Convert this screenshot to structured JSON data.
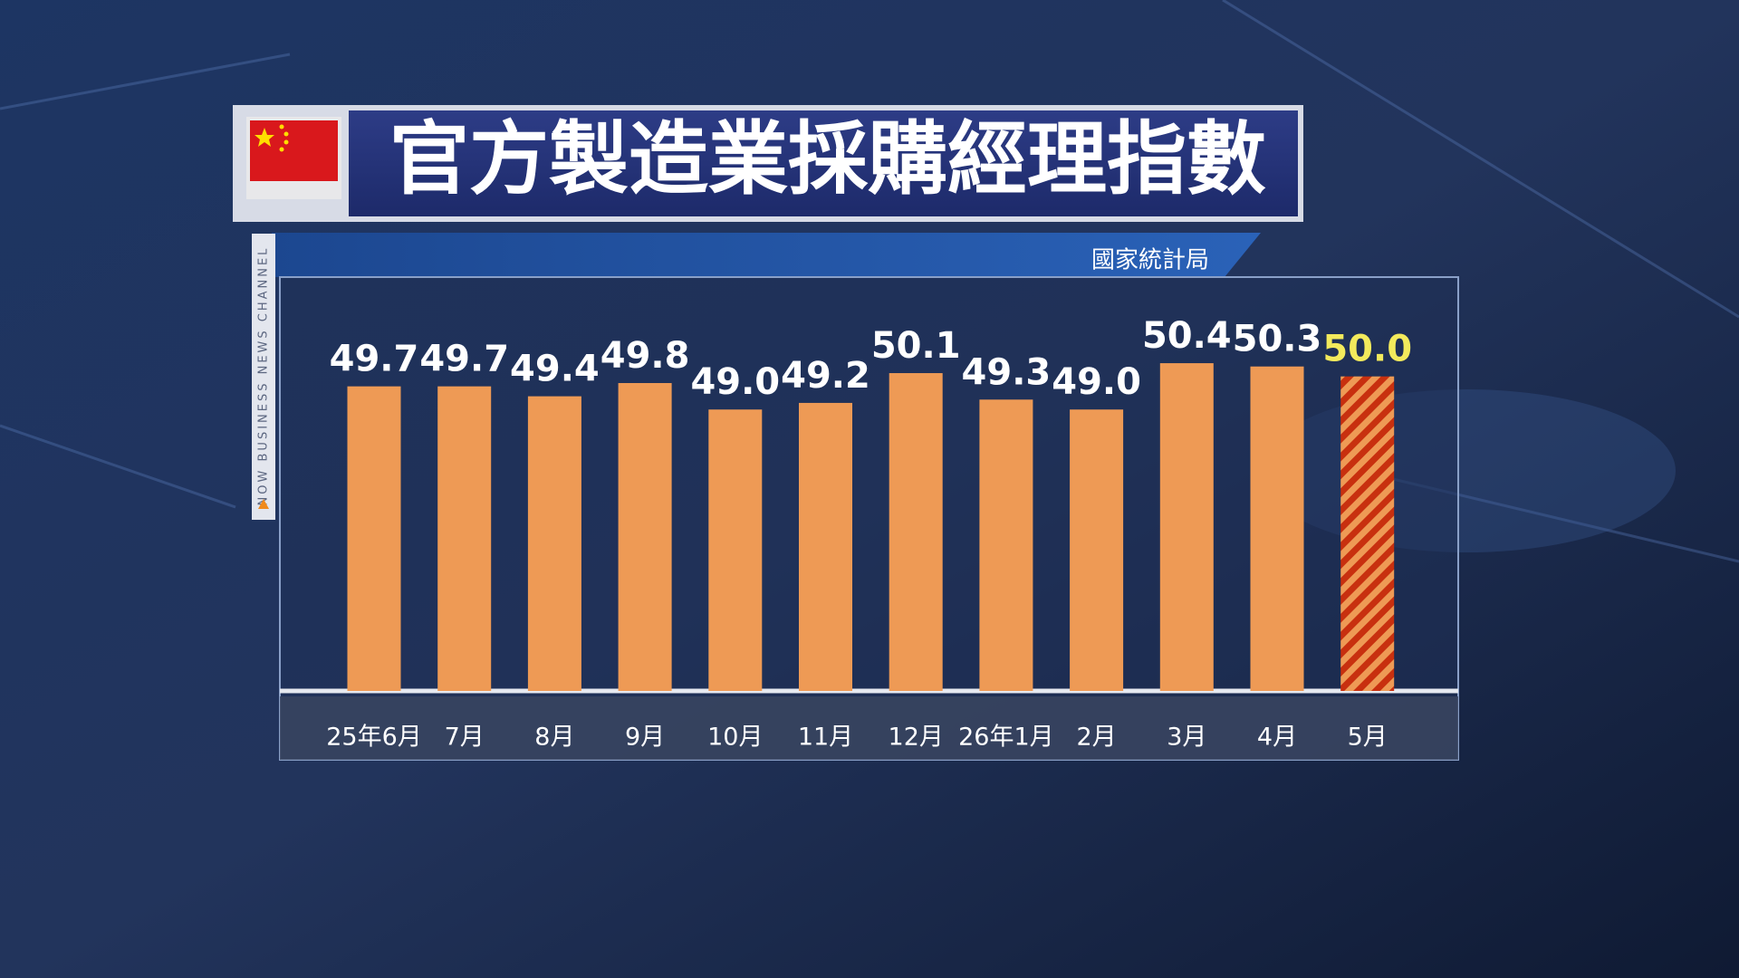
{
  "chart_data": {
    "type": "bar",
    "title": "官方製造業採購經理指數",
    "source": "國家統計局",
    "channel_tag": "NOW BUSINESS NEWS CHANNEL",
    "categories": [
      "25年6月",
      "7月",
      "8月",
      "9月",
      "10月",
      "11月",
      "12月",
      "26年1月",
      "2月",
      "3月",
      "4月",
      "5月"
    ],
    "values": [
      49.7,
      49.7,
      49.4,
      49.8,
      49,
      49.2,
      50.1,
      49.3,
      49,
      50.4,
      50.3,
      50
    ],
    "value_labels": [
      "49.7",
      "49.7",
      "49.4",
      "49.8",
      "49.0",
      "49.2",
      "50.1",
      "49.3",
      "49.0",
      "50.4",
      "50.3",
      "50.0"
    ],
    "color": "#ee9a55",
    "bar_colors": [
      "#ee9a55",
      "#ee9a55",
      "#ee9a55",
      "#ee9a55",
      "#ee9a55",
      "#ee9a55",
      "#ee9a55",
      "#ee9a55",
      "#ee9a55",
      "#ee9a55",
      "#ee9a55",
      "#c8300f"
    ],
    "label_colors": [
      "#ffffff",
      "#ffffff",
      "#ffffff",
      "#ffffff",
      "#ffffff",
      "#ffffff",
      "#ffffff",
      "#ffffff",
      "#ffffff",
      "#ffffff",
      "#ffffff",
      "#f3ea5c"
    ],
    "ylim": [
      40.5,
      53
    ]
  }
}
